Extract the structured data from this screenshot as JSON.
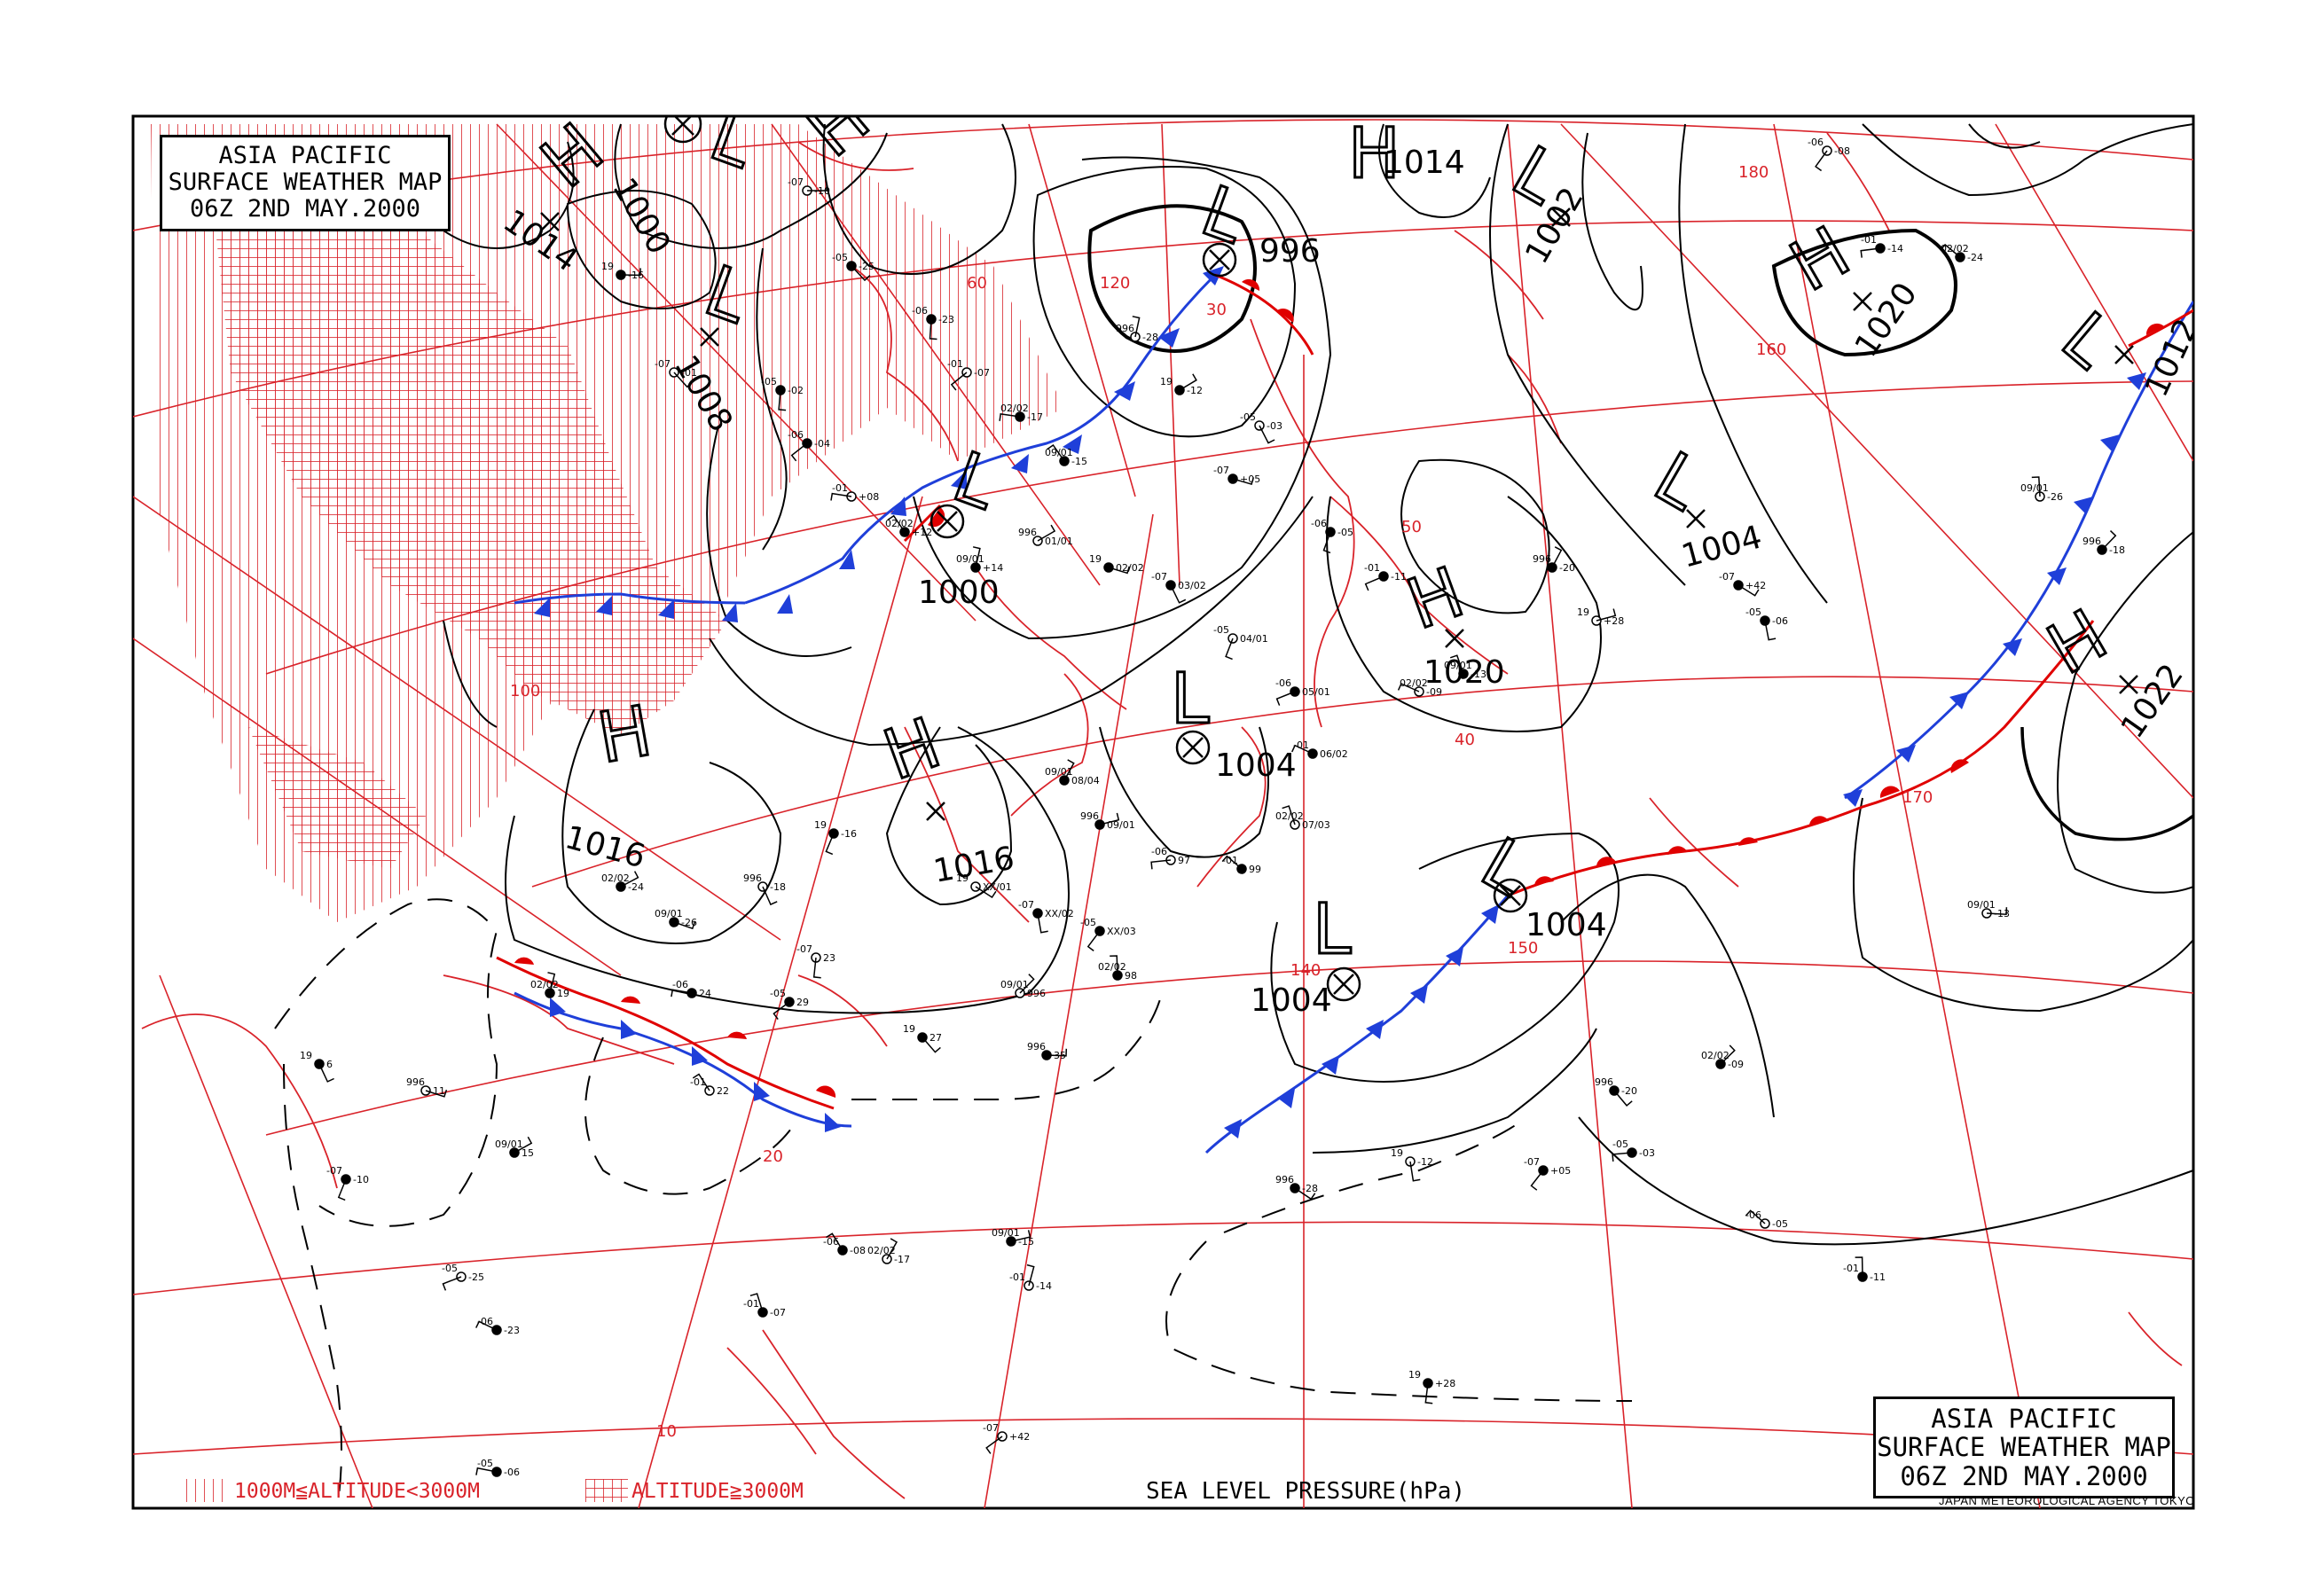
{
  "map": {
    "title_line1": "ASIA PACIFIC",
    "title_line2": "SURFACE WEATHER MAP",
    "title_line3": "06Z  2ND MAY.2000",
    "agency": "JAPAN METEOROLOGICAL AGENCY TOKYO",
    "pressure_label": "SEA LEVEL PRESSURE(hPa)",
    "legend": {
      "medium_altitude": "1000M≦ALTITUDE<3000M",
      "high_altitude": "ALTITUDE≧3000M"
    },
    "colors": {
      "grid": "#d9232a",
      "isobar": "#000000",
      "cold_front": "#1f3fd9",
      "warm_front": "#e00000",
      "coast": "#d9232a"
    },
    "pressure_systems": [
      {
        "type": "L",
        "value": "1000"
      },
      {
        "type": "H",
        "value": "1014"
      },
      {
        "type": "L",
        "value": "1008"
      },
      {
        "type": "L",
        "value": "996"
      },
      {
        "type": "H",
        "value": "1014"
      },
      {
        "type": "L",
        "value": "1002"
      },
      {
        "type": "H",
        "value": "1020"
      },
      {
        "type": "L",
        "value": "1012"
      },
      {
        "type": "L",
        "value": "1000"
      },
      {
        "type": "L",
        "value": "1004"
      },
      {
        "type": "H",
        "value": "1020"
      },
      {
        "type": "H",
        "value": "1022"
      },
      {
        "type": "H",
        "value": "1016"
      },
      {
        "type": "H",
        "value": "1016"
      },
      {
        "type": "L",
        "value": "1004"
      },
      {
        "type": "L",
        "value": "1004"
      },
      {
        "type": "L",
        "value": "1004"
      }
    ],
    "grid_labels": {
      "latitudes": [
        "60",
        "50",
        "40",
        "30",
        "20",
        "10"
      ],
      "longitudes": [
        "100",
        "120",
        "140",
        "150",
        "160",
        "170",
        "180"
      ]
    },
    "station_labels": [
      "-10",
      "-25",
      "-23",
      "-07",
      "-17",
      "-15",
      "-28",
      "-12",
      "+05",
      "-03",
      "-05",
      "-11",
      "-09",
      "-13",
      "-20",
      "+28",
      "+42",
      "-06",
      "-08",
      "-14",
      "-24",
      "-26",
      "-18",
      "-16",
      "-01",
      "-02",
      "-04",
      "+08",
      "+12",
      "+14",
      "01/01",
      "02/02",
      "03/02",
      "04/01",
      "05/01",
      "06/02",
      "07/03",
      "08/04",
      "09/01",
      "XX/01",
      "XX/02",
      "XX/03",
      "97",
      "99",
      "98",
      "996",
      "35",
      "27",
      "23",
      "29",
      "24",
      "22",
      "19",
      "15",
      "11",
      "6"
    ]
  }
}
